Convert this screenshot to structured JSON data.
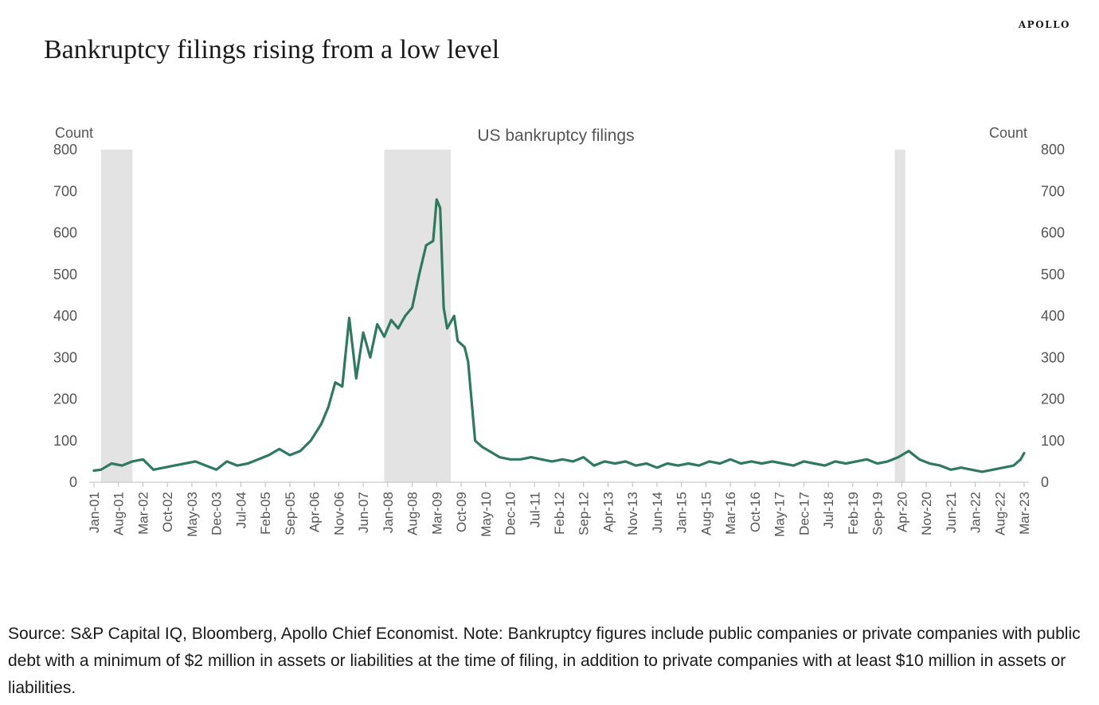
{
  "brand": "APOLLO",
  "headline": "Bankruptcy filings rising from a low level",
  "footnote": "Source: S&P Capital IQ, Bloomberg, Apollo Chief Economist. Note: Bankruptcy figures include public companies or private companies with public debt with a minimum of $2 million in assets or liabilities at the time of filing, in addition to private companies with at least $10 million in assets or liabilities.",
  "chart_data": {
    "type": "line",
    "title": "US bankruptcy filings",
    "ylabel_left": "Count",
    "ylabel_right": "Count",
    "ylim": [
      0,
      800
    ],
    "yticks": [
      0,
      100,
      200,
      300,
      400,
      500,
      600,
      700,
      800
    ],
    "x_start": "Jan-01",
    "x_end": "Mar-23",
    "x_tick_labels": [
      "Jan-01",
      "Aug-01",
      "Mar-02",
      "Oct-02",
      "May-03",
      "Dec-03",
      "Jul-04",
      "Feb-05",
      "Sep-05",
      "Apr-06",
      "Nov-06",
      "Jun-07",
      "Jan-08",
      "Aug-08",
      "Mar-09",
      "Oct-09",
      "May-10",
      "Dec-10",
      "Jul-11",
      "Feb-12",
      "Sep-12",
      "Apr-13",
      "Nov-13",
      "Jun-14",
      "Jan-15",
      "Aug-15",
      "Mar-16",
      "Oct-16",
      "May-17",
      "Dec-17",
      "Jul-18",
      "Feb-19",
      "Sep-19",
      "Apr-20",
      "Nov-20",
      "Jun-21",
      "Jan-22",
      "Aug-22",
      "Mar-23"
    ],
    "shaded_periods": [
      {
        "start": "Mar-01",
        "end": "Nov-01"
      },
      {
        "start": "Dec-07",
        "end": "Jun-09"
      },
      {
        "start": "Feb-20",
        "end": "Apr-20"
      }
    ],
    "grid": false,
    "line_color": "#2f7a5e",
    "shade_color": "#e3e3e3",
    "series": [
      {
        "name": "",
        "points": [
          [
            "Jan-01",
            28
          ],
          [
            "Mar-01",
            30
          ],
          [
            "Jun-01",
            45
          ],
          [
            "Sep-01",
            40
          ],
          [
            "Dec-01",
            50
          ],
          [
            "Mar-02",
            55
          ],
          [
            "Jun-02",
            30
          ],
          [
            "Sep-02",
            35
          ],
          [
            "Dec-02",
            40
          ],
          [
            "Mar-03",
            45
          ],
          [
            "Jun-03",
            50
          ],
          [
            "Sep-03",
            40
          ],
          [
            "Dec-03",
            30
          ],
          [
            "Mar-04",
            50
          ],
          [
            "Jun-04",
            40
          ],
          [
            "Sep-04",
            45
          ],
          [
            "Dec-04",
            55
          ],
          [
            "Mar-05",
            65
          ],
          [
            "Jun-05",
            80
          ],
          [
            "Sep-05",
            65
          ],
          [
            "Dec-05",
            75
          ],
          [
            "Mar-06",
            100
          ],
          [
            "Jun-06",
            140
          ],
          [
            "Aug-06",
            180
          ],
          [
            "Oct-06",
            240
          ],
          [
            "Dec-06",
            230
          ],
          [
            "Feb-07",
            395
          ],
          [
            "Apr-07",
            250
          ],
          [
            "Jun-07",
            360
          ],
          [
            "Aug-07",
            300
          ],
          [
            "Oct-07",
            380
          ],
          [
            "Dec-07",
            350
          ],
          [
            "Feb-08",
            390
          ],
          [
            "Apr-08",
            370
          ],
          [
            "Jun-08",
            400
          ],
          [
            "Aug-08",
            420
          ],
          [
            "Oct-08",
            500
          ],
          [
            "Dec-08",
            570
          ],
          [
            "Feb-09",
            580
          ],
          [
            "Mar-09",
            680
          ],
          [
            "Apr-09",
            660
          ],
          [
            "May-09",
            420
          ],
          [
            "Jun-09",
            370
          ],
          [
            "Aug-09",
            400
          ],
          [
            "Sep-09",
            340
          ],
          [
            "Nov-09",
            325
          ],
          [
            "Dec-09",
            290
          ],
          [
            "Feb-10",
            100
          ],
          [
            "Apr-10",
            85
          ],
          [
            "Jun-10",
            75
          ],
          [
            "Sep-10",
            60
          ],
          [
            "Dec-10",
            55
          ],
          [
            "Mar-11",
            55
          ],
          [
            "Jun-11",
            60
          ],
          [
            "Sep-11",
            55
          ],
          [
            "Dec-11",
            50
          ],
          [
            "Mar-12",
            55
          ],
          [
            "Jun-12",
            50
          ],
          [
            "Sep-12",
            60
          ],
          [
            "Dec-12",
            40
          ],
          [
            "Mar-13",
            50
          ],
          [
            "Jun-13",
            45
          ],
          [
            "Sep-13",
            50
          ],
          [
            "Dec-13",
            40
          ],
          [
            "Mar-14",
            45
          ],
          [
            "Jun-14",
            35
          ],
          [
            "Sep-14",
            45
          ],
          [
            "Dec-14",
            40
          ],
          [
            "Mar-15",
            45
          ],
          [
            "Jun-15",
            40
          ],
          [
            "Sep-15",
            50
          ],
          [
            "Dec-15",
            45
          ],
          [
            "Mar-16",
            55
          ],
          [
            "Jun-16",
            45
          ],
          [
            "Sep-16",
            50
          ],
          [
            "Dec-16",
            45
          ],
          [
            "Mar-17",
            50
          ],
          [
            "Jun-17",
            45
          ],
          [
            "Sep-17",
            40
          ],
          [
            "Dec-17",
            50
          ],
          [
            "Mar-18",
            45
          ],
          [
            "Jun-18",
            40
          ],
          [
            "Sep-18",
            50
          ],
          [
            "Dec-18",
            45
          ],
          [
            "Mar-19",
            50
          ],
          [
            "Jun-19",
            55
          ],
          [
            "Sep-19",
            45
          ],
          [
            "Dec-19",
            50
          ],
          [
            "Mar-20",
            60
          ],
          [
            "Jun-20",
            75
          ],
          [
            "Sep-20",
            55
          ],
          [
            "Dec-20",
            45
          ],
          [
            "Mar-21",
            40
          ],
          [
            "Jun-21",
            30
          ],
          [
            "Sep-21",
            35
          ],
          [
            "Dec-21",
            30
          ],
          [
            "Mar-22",
            25
          ],
          [
            "Jun-22",
            30
          ],
          [
            "Sep-22",
            35
          ],
          [
            "Dec-22",
            40
          ],
          [
            "Feb-23",
            55
          ],
          [
            "Mar-23",
            70
          ]
        ]
      }
    ]
  }
}
